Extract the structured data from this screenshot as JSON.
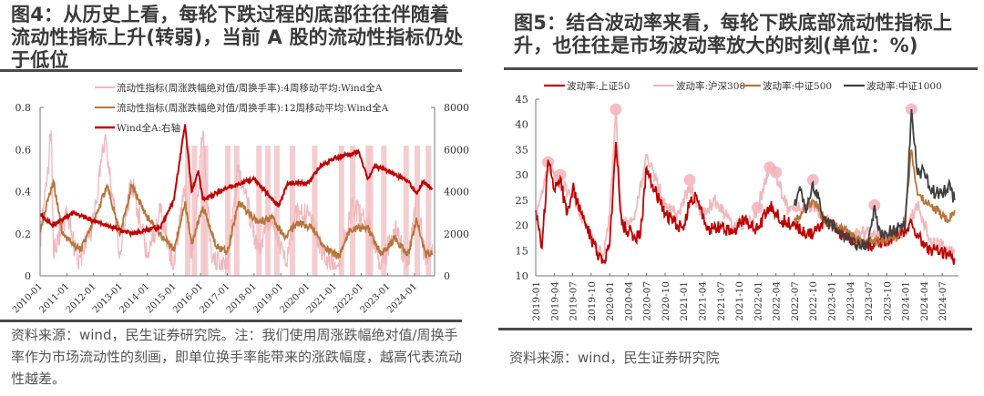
{
  "left_figure": {
    "title": "图4：从历史上看，每轮下跌过程的底部往往伴随着流动性指标上升(转弱)，当前 A 股的流动性指标仍处于低位",
    "source": "资料来源：wind，民生证券研究院。注：我们使用周涨跌幅绝对值/周换手率作为市场流动性的刻画，即单位换手率能带来的涨跌幅度，越高代表流动性越差。"
  },
  "right_figure": {
    "title": "图5：结合波动率来看，每轮下跌底部流动性指标上升，也往往是市场波动率放大的时刻(单位：%)",
    "source": "资料来源：wind，民生证券研究院"
  },
  "colors": {
    "wind_a": "#c00000",
    "liq_4w": "#f0b8bd",
    "liq_12w": "#b8743a",
    "shade": "#f2c4c8",
    "sz50": "#c00000",
    "hs300": "#f0b8bd",
    "zz500": "#b8743a",
    "zz1000": "#404040",
    "peak_marker": "#f4a6b0"
  },
  "chart_data": [
    {
      "type": "line",
      "title": "图4：从历史上看，每轮下跌过程的底部往往伴随着流动性指标上升(转弱)，当前 A 股的流动性指标仍处于低位",
      "legend": [
        "流动性指标(周涨跌幅绝对值/周换手率):4周移动平均:Wind全A",
        "流动性指标(周涨跌幅绝对值/周换手率):12周移动平均:Wind全A",
        "Wind全A:右轴"
      ],
      "legend_position": "top",
      "x_ticks": [
        "2010-01",
        "2011-01",
        "2012-01",
        "2013-01",
        "2014-01",
        "2015-01",
        "2016-01",
        "2017-01",
        "2018-01",
        "2019-01",
        "2020-01",
        "2021-01",
        "2022-01",
        "2023-01",
        "2024-01"
      ],
      "y_left": {
        "range": [
          0,
          0.8
        ],
        "ticks": [
          "0",
          "0.2",
          "0.4",
          "0.6",
          "0.8"
        ]
      },
      "y_right": {
        "range": [
          0,
          8000
        ],
        "ticks": [
          "0",
          "2000",
          "4000",
          "6000",
          "8000"
        ]
      },
      "grid": false,
      "shaded_periods_approx": [
        "2015-06",
        "2015-09",
        "2016-01",
        "2016-02",
        "2016-12",
        "2017-04",
        "2018-02",
        "2018-06",
        "2018-10",
        "2019-05",
        "2020-03",
        "2021-03",
        "2021-08",
        "2022-03",
        "2022-04",
        "2022-10",
        "2023-08",
        "2024-01",
        "2024-06"
      ],
      "series": [
        {
          "name": "Wind全A:右轴",
          "axis": "right",
          "x": [
            "2010-01",
            "2010-07",
            "2011-04",
            "2012-01",
            "2012-12",
            "2013-06",
            "2014-01",
            "2014-07",
            "2015-01",
            "2015-06",
            "2015-09",
            "2015-12",
            "2016-02",
            "2017-01",
            "2018-01",
            "2018-12",
            "2019-04",
            "2020-01",
            "2020-07",
            "2021-01",
            "2021-12",
            "2022-04",
            "2022-07",
            "2023-01",
            "2023-10",
            "2024-02",
            "2024-05",
            "2024-09"
          ],
          "values": [
            2900,
            2400,
            3000,
            2600,
            2200,
            2000,
            2200,
            2300,
            3600,
            7200,
            4000,
            5000,
            3600,
            4200,
            4600,
            3300,
            4400,
            4400,
            5200,
            5600,
            5900,
            4600,
            5200,
            5000,
            4500,
            3900,
            4500,
            4100
          ]
        },
        {
          "name": "流动性指标:12周移动平均:Wind全A",
          "axis": "left",
          "x": [
            "2010-01",
            "2010-07",
            "2010-11",
            "2011-07",
            "2012-01",
            "2012-07",
            "2013-01",
            "2013-06",
            "2014-01",
            "2014-07",
            "2015-01",
            "2015-06",
            "2015-09",
            "2016-02",
            "2016-08",
            "2017-01",
            "2017-06",
            "2018-03",
            "2018-09",
            "2019-03",
            "2019-08",
            "2020-03",
            "2020-09",
            "2021-03",
            "2021-08",
            "2022-04",
            "2022-10",
            "2023-04",
            "2023-10",
            "2024-02",
            "2024-06",
            "2024-09"
          ],
          "values": [
            0.22,
            0.45,
            0.2,
            0.12,
            0.25,
            0.43,
            0.2,
            0.43,
            0.28,
            0.2,
            0.12,
            0.35,
            0.15,
            0.33,
            0.14,
            0.11,
            0.35,
            0.25,
            0.28,
            0.18,
            0.25,
            0.23,
            0.13,
            0.09,
            0.22,
            0.23,
            0.1,
            0.18,
            0.1,
            0.27,
            0.1,
            0.11
          ]
        },
        {
          "name": "流动性指标:4周移动平均:Wind全A",
          "axis": "left",
          "x": [
            "2010-01",
            "2010-06",
            "2010-07",
            "2011-01",
            "2011-06",
            "2012-01",
            "2012-06",
            "2013-01",
            "2013-06",
            "2014-01",
            "2014-07",
            "2015-01",
            "2015-06",
            "2015-09",
            "2016-02",
            "2016-06",
            "2017-01",
            "2017-06",
            "2018-03",
            "2018-09",
            "2019-03",
            "2019-08",
            "2020-03",
            "2020-09",
            "2021-03",
            "2021-09",
            "2022-04",
            "2022-10",
            "2023-04",
            "2023-10",
            "2024-02",
            "2024-06",
            "2024-09"
          ],
          "values": [
            0.15,
            0.69,
            0.1,
            0.3,
            0.06,
            0.25,
            0.65,
            0.1,
            0.45,
            0.1,
            0.3,
            0.05,
            0.43,
            0.08,
            0.68,
            0.06,
            0.05,
            0.52,
            0.12,
            0.3,
            0.05,
            0.3,
            0.28,
            0.06,
            0.05,
            0.33,
            0.25,
            0.04,
            0.22,
            0.05,
            0.38,
            0.05,
            0.15
          ]
        }
      ]
    },
    {
      "type": "line",
      "title": "图5：结合波动率来看，每轮下跌底部流动性指标上升，也往往是市场波动率放大的时刻(单位：%)",
      "ylabel": "%",
      "legend": [
        "波动率:上证50",
        "波动率:沪深300",
        "波动率:中证500",
        "波动率:中证1000"
      ],
      "legend_position": "top",
      "x_ticks": [
        "2019-01",
        "2019-04",
        "2019-07",
        "2019-10",
        "2020-01",
        "2020-04",
        "2020-07",
        "2020-10",
        "2021-01",
        "2021-04",
        "2021-07",
        "2021-10",
        "2022-01",
        "2022-04",
        "2022-07",
        "2022-10",
        "2023-01",
        "2023-04",
        "2023-07",
        "2023-10",
        "2024-01",
        "2024-04",
        "2024-07"
      ],
      "y": {
        "range": [
          10,
          45
        ],
        "ticks": [
          "10",
          "15",
          "20",
          "25",
          "30",
          "35",
          "40",
          "45"
        ]
      },
      "grid": false,
      "peak_markers": [
        {
          "x": "2019-03",
          "y": 32.5
        },
        {
          "x": "2019-05",
          "y": 30
        },
        {
          "x": "2020-02",
          "y": 43
        },
        {
          "x": "2021-02",
          "y": 29
        },
        {
          "x": "2022-01",
          "y": 23.5
        },
        {
          "x": "2022-03",
          "y": 31.5
        },
        {
          "x": "2022-04",
          "y": 30.5
        },
        {
          "x": "2022-10",
          "y": 29
        },
        {
          "x": "2023-08",
          "y": 24
        },
        {
          "x": "2024-02",
          "y": 43
        }
      ],
      "series": [
        {
          "name": "波动率:上证50",
          "x": [
            "2019-01",
            "2019-02",
            "2019-03",
            "2019-04",
            "2019-05",
            "2019-06",
            "2019-07",
            "2019-09",
            "2019-11",
            "2019-12",
            "2020-01",
            "2020-02",
            "2020-03",
            "2020-05",
            "2020-06",
            "2020-07",
            "2020-08",
            "2020-10",
            "2020-12",
            "2021-01",
            "2021-02",
            "2021-03",
            "2021-05",
            "2021-07",
            "2021-09",
            "2021-11",
            "2022-01",
            "2022-03",
            "2022-05",
            "2022-07",
            "2022-10",
            "2022-12",
            "2023-03",
            "2023-06",
            "2023-08",
            "2023-11",
            "2024-01",
            "2024-02",
            "2024-04",
            "2024-06",
            "2024-08",
            "2024-09"
          ],
          "values": [
            23,
            15.5,
            33,
            27,
            29.5,
            22,
            27.5,
            20.5,
            14.5,
            12.8,
            16,
            36.5,
            20,
            18,
            18,
            31.5,
            28,
            22,
            20,
            19,
            25,
            26,
            19,
            20,
            18.5,
            21.5,
            19,
            24,
            21,
            20,
            18,
            21,
            18,
            16.5,
            16,
            18,
            19,
            21,
            15.5,
            15,
            14,
            13.5
          ]
        },
        {
          "name": "波动率:沪深300",
          "x": [
            "2019-01",
            "2019-03",
            "2019-05",
            "2019-07",
            "2019-09",
            "2019-11",
            "2019-12",
            "2020-01",
            "2020-02",
            "2020-03",
            "2020-05",
            "2020-07",
            "2020-08",
            "2020-10",
            "2020-12",
            "2021-02",
            "2021-04",
            "2021-06",
            "2021-09",
            "2021-12",
            "2022-01",
            "2022-03",
            "2022-04",
            "2022-06",
            "2022-10",
            "2023-01",
            "2023-04",
            "2023-08",
            "2023-11",
            "2024-01",
            "2024-03",
            "2024-05",
            "2024-07",
            "2024-09"
          ],
          "values": [
            22,
            32,
            28,
            26,
            20,
            15,
            14,
            22,
            43,
            20,
            21,
            34,
            31,
            24,
            22,
            28,
            22,
            25,
            20,
            21,
            23.5,
            31.5,
            30,
            23,
            24,
            20,
            18,
            19,
            17,
            19,
            24,
            17,
            16,
            14.5
          ]
        },
        {
          "name": "波动率:中证500",
          "x": [
            "2022-07",
            "2022-10",
            "2022-12",
            "2023-03",
            "2023-06",
            "2023-09",
            "2023-12",
            "2024-01",
            "2024-02",
            "2024-03",
            "2024-05",
            "2024-07",
            "2024-08",
            "2024-09"
          ],
          "values": [
            21,
            25,
            21,
            19,
            16.5,
            17,
            18,
            22,
            35,
            26,
            24,
            22,
            21,
            23
          ]
        },
        {
          "name": "波动率:中证1000",
          "x": [
            "2022-07",
            "2022-08",
            "2022-09",
            "2022-10",
            "2022-12",
            "2023-02",
            "2023-05",
            "2023-07",
            "2023-08",
            "2023-09",
            "2023-11",
            "2024-01",
            "2024-02",
            "2024-03",
            "2024-04",
            "2024-05",
            "2024-07",
            "2024-08",
            "2024-09"
          ],
          "values": [
            24,
            27,
            23,
            28.5,
            21,
            19,
            16,
            16,
            24,
            18,
            19,
            20,
            43,
            30,
            31,
            27,
            26,
            28,
            25
          ]
        }
      ]
    }
  ]
}
